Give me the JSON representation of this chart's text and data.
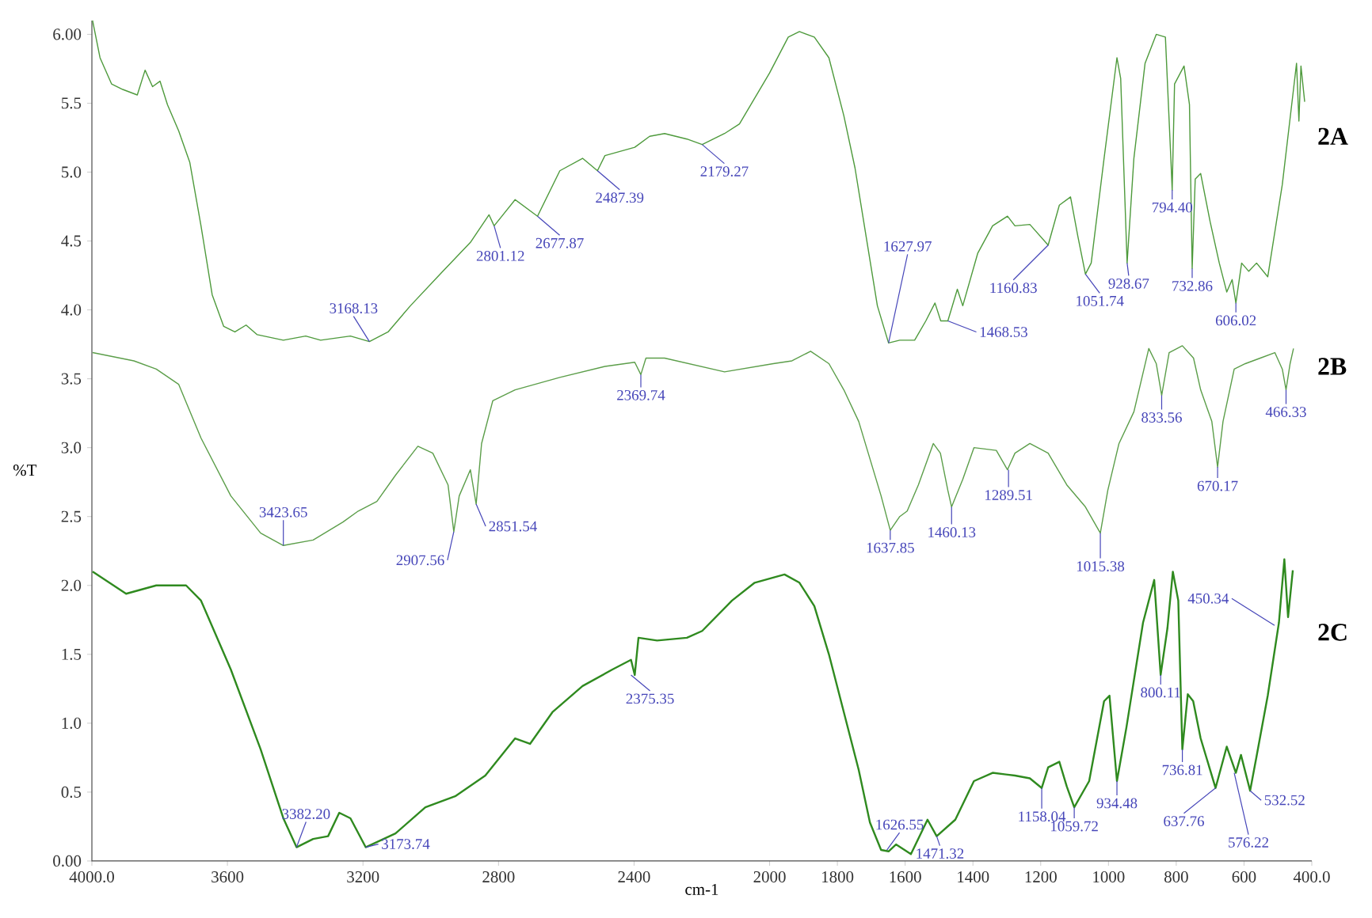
{
  "chart_data": {
    "type": "line",
    "xlabel": "cm-1",
    "ylabel": "%T",
    "xlim": [
      4000,
      400
    ],
    "ylim": [
      0,
      6.1
    ],
    "xticks": [
      {
        "value": 4000,
        "label": "4000.0"
      },
      3600,
      3200,
      2800,
      2400,
      2000,
      1800,
      1600,
      1400,
      1200,
      1000,
      800,
      600,
      {
        "value": 400,
        "label": "400.0"
      }
    ],
    "yticks": [
      {
        "value": 0,
        "label": "0.00"
      },
      {
        "value": 0.5,
        "label": "0.5"
      },
      {
        "value": 1,
        "label": "1.0"
      },
      {
        "value": 1.5,
        "label": "1.5"
      },
      {
        "value": 2,
        "label": "2.0"
      },
      {
        "value": 2.5,
        "label": "2.5"
      },
      {
        "value": 3,
        "label": "3.0"
      },
      {
        "value": 3.5,
        "label": "3.5"
      },
      {
        "value": 4,
        "label": "4.0"
      },
      {
        "value": 4.5,
        "label": "4.5"
      },
      {
        "value": 5,
        "label": "5.0"
      },
      {
        "value": 5.5,
        "label": "5.5"
      },
      {
        "value": 6,
        "label": "6.00"
      }
    ],
    "series": [
      {
        "name": "2A",
        "color": "#4e9a3c",
        "x": [
          3998,
          3976,
          3942,
          3909,
          3866,
          3843,
          3821,
          3799,
          3777,
          3744,
          3711,
          3678,
          3645,
          3611,
          3578,
          3545,
          3512,
          3435,
          3369,
          3325,
          3237,
          3181,
          3126,
          3060,
          2972,
          2883,
          2828,
          2813,
          2751,
          2685,
          2619,
          2552,
          2508,
          2486,
          2398,
          2354,
          2310,
          2244,
          2199,
          2133,
          2089,
          2000,
          1945,
          1912,
          1868,
          1825,
          1781,
          1748,
          1715,
          1682,
          1649,
          1616,
          1572,
          1539,
          1512,
          1495,
          1474,
          1446,
          1430,
          1386,
          1342,
          1298,
          1276,
          1232,
          1178,
          1145,
          1112,
          1090,
          1068,
          1051,
          1013,
          975,
          964,
          945,
          925,
          892,
          859,
          832,
          816,
          812,
          805,
          777,
          761,
          753,
          744,
          728,
          700,
          673,
          651,
          635,
          624,
          607,
          586,
          563,
          530,
          487,
          454,
          445,
          438,
          432,
          421
        ],
        "values": [
          6.1,
          5.83,
          5.64,
          5.6,
          5.56,
          5.74,
          5.62,
          5.66,
          5.49,
          5.3,
          5.07,
          4.61,
          4.11,
          3.88,
          3.84,
          3.89,
          3.82,
          3.78,
          3.81,
          3.78,
          3.81,
          3.77,
          3.84,
          4.03,
          4.26,
          4.49,
          4.69,
          4.61,
          4.8,
          4.68,
          5.01,
          5.1,
          5.01,
          5.12,
          5.18,
          5.26,
          5.28,
          5.24,
          5.2,
          5.28,
          5.35,
          5.72,
          5.98,
          6.02,
          5.98,
          5.83,
          5.41,
          5.03,
          4.53,
          4.03,
          3.76,
          3.78,
          3.78,
          3.92,
          4.05,
          3.92,
          3.92,
          4.15,
          4.03,
          4.41,
          4.61,
          4.68,
          4.61,
          4.62,
          4.47,
          4.76,
          4.82,
          4.53,
          4.26,
          4.34,
          5.1,
          5.83,
          5.68,
          4.34,
          5.1,
          5.79,
          6.0,
          5.98,
          5.1,
          4.87,
          5.64,
          5.77,
          5.49,
          4.3,
          4.95,
          4.99,
          4.64,
          4.34,
          4.13,
          4.22,
          4.05,
          4.34,
          4.28,
          4.34,
          4.24,
          4.91,
          5.6,
          5.79,
          5.37,
          5.77,
          5.51
        ]
      },
      {
        "name": "2B",
        "color": "#5c9e4a",
        "x": [
          3998,
          3876,
          3810,
          3744,
          3678,
          3590,
          3502,
          3435,
          3347,
          3259,
          3214,
          3159,
          3104,
          3038,
          2994,
          2949,
          2932,
          2916,
          2883,
          2866,
          2850,
          2817,
          2751,
          2619,
          2486,
          2398,
          2380,
          2365,
          2310,
          2133,
          1989,
          1934,
          1879,
          1825,
          1781,
          1737,
          1704,
          1671,
          1644,
          1616,
          1594,
          1561,
          1517,
          1496,
          1474,
          1463,
          1430,
          1397,
          1331,
          1298,
          1276,
          1232,
          1178,
          1123,
          1068,
          1024,
          1002,
          969,
          925,
          881,
          859,
          843,
          821,
          782,
          749,
          728,
          695,
          678,
          662,
          629,
          596,
          552,
          509,
          487,
          476,
          464,
          454
        ],
        "values": [
          3.69,
          3.63,
          3.57,
          3.46,
          3.07,
          2.65,
          2.38,
          2.29,
          2.33,
          2.46,
          2.54,
          2.61,
          2.8,
          3.01,
          2.96,
          2.73,
          2.39,
          2.65,
          2.84,
          2.59,
          3.03,
          3.34,
          3.42,
          3.51,
          3.59,
          3.62,
          3.53,
          3.65,
          3.65,
          3.55,
          3.61,
          3.63,
          3.7,
          3.61,
          3.42,
          3.19,
          2.92,
          2.65,
          2.4,
          2.5,
          2.54,
          2.73,
          3.03,
          2.96,
          2.69,
          2.57,
          2.77,
          3.0,
          2.98,
          2.84,
          2.96,
          3.03,
          2.96,
          2.73,
          2.57,
          2.38,
          2.69,
          3.03,
          3.26,
          3.72,
          3.61,
          3.38,
          3.69,
          3.74,
          3.65,
          3.42,
          3.19,
          2.86,
          3.19,
          3.57,
          3.61,
          3.65,
          3.69,
          3.57,
          3.42,
          3.61,
          3.72
        ]
      },
      {
        "name": "2C",
        "color": "#2f8a1f",
        "x": [
          3998,
          3899,
          3810,
          3722,
          3678,
          3590,
          3502,
          3435,
          3396,
          3347,
          3303,
          3270,
          3237,
          3192,
          3104,
          3016,
          2928,
          2839,
          2751,
          2707,
          2641,
          2552,
          2464,
          2409,
          2398,
          2387,
          2332,
          2244,
          2199,
          2111,
          2044,
          1956,
          1912,
          1868,
          1825,
          1781,
          1737,
          1704,
          1671,
          1649,
          1627,
          1583,
          1534,
          1507,
          1452,
          1397,
          1342,
          1276,
          1232,
          1197,
          1178,
          1145,
          1123,
          1101,
          1057,
          1013,
          997,
          975,
          947,
          898,
          865,
          846,
          826,
          810,
          794,
          782,
          766,
          750,
          728,
          684,
          651,
          624,
          609,
          582,
          563,
          530,
          497,
          481,
          470,
          456
        ],
        "values": [
          2.1,
          1.94,
          2.0,
          2.0,
          1.89,
          1.39,
          0.81,
          0.31,
          0.1,
          0.16,
          0.18,
          0.35,
          0.31,
          0.1,
          0.2,
          0.39,
          0.47,
          0.62,
          0.89,
          0.85,
          1.08,
          1.27,
          1.39,
          1.46,
          1.35,
          1.62,
          1.6,
          1.62,
          1.67,
          1.89,
          2.02,
          2.08,
          2.02,
          1.85,
          1.5,
          1.08,
          0.66,
          0.28,
          0.08,
          0.07,
          0.12,
          0.05,
          0.3,
          0.18,
          0.3,
          0.58,
          0.64,
          0.62,
          0.6,
          0.53,
          0.68,
          0.72,
          0.54,
          0.39,
          0.58,
          1.16,
          1.2,
          0.58,
          0.97,
          1.73,
          2.04,
          1.35,
          1.69,
          2.1,
          1.89,
          0.81,
          1.21,
          1.16,
          0.89,
          0.53,
          0.83,
          0.64,
          0.77,
          0.51,
          0.76,
          1.2,
          1.73,
          2.19,
          1.77,
          2.11
        ]
      }
    ],
    "annotations": [
      {
        "text": "3168.13",
        "x": 3181,
        "y": 3.77
      },
      {
        "text": "2801.12",
        "x": 2813,
        "y": 4.61
      },
      {
        "text": "2677.87",
        "x": 2685,
        "y": 4.68
      },
      {
        "text": "2487.39",
        "x": 2508,
        "y": 5.01
      },
      {
        "text": "2179.27",
        "x": 2199,
        "y": 5.2
      },
      {
        "text": "1627.97",
        "x": 1649,
        "y": 3.76
      },
      {
        "text": "1468.53",
        "x": 1474,
        "y": 3.92
      },
      {
        "text": "1160.83",
        "x": 1178,
        "y": 4.47
      },
      {
        "text": "1051.74",
        "x": 1068,
        "y": 4.26
      },
      {
        "text": "928.67",
        "x": 945,
        "y": 4.34
      },
      {
        "text": "794.40",
        "x": 812,
        "y": 4.87
      },
      {
        "text": "732.86",
        "x": 753,
        "y": 4.3
      },
      {
        "text": "606.02",
        "x": 624,
        "y": 4.05
      },
      {
        "text": "3423.65",
        "x": 3435,
        "y": 2.29
      },
      {
        "text": "2907.56",
        "x": 2932,
        "y": 2.39
      },
      {
        "text": "2851.54",
        "x": 2866,
        "y": 2.59
      },
      {
        "text": "2369.74",
        "x": 2380,
        "y": 3.53
      },
      {
        "text": "1637.85",
        "x": 1644,
        "y": 2.4
      },
      {
        "text": "1460.13",
        "x": 1463,
        "y": 2.57
      },
      {
        "text": "1289.51",
        "x": 1295,
        "y": 2.84
      },
      {
        "text": "1015.38",
        "x": 1024,
        "y": 2.38
      },
      {
        "text": "833.56",
        "x": 843,
        "y": 3.38
      },
      {
        "text": "670.17",
        "x": 678,
        "y": 2.86
      },
      {
        "text": "466.33",
        "x": 476,
        "y": 3.42
      },
      {
        "text": "3382.20",
        "x": 3396,
        "y": 0.1
      },
      {
        "text": "3173.74",
        "x": 3192,
        "y": 0.1
      },
      {
        "text": "2375.35",
        "x": 2409,
        "y": 1.35
      },
      {
        "text": "1626.55",
        "x": 1654,
        "y": 0.08
      },
      {
        "text": "1471.32",
        "x": 1507,
        "y": 0.18
      },
      {
        "text": "1158.04",
        "x": 1197,
        "y": 0.53
      },
      {
        "text": "1059.72",
        "x": 1101,
        "y": 0.39
      },
      {
        "text": "934.48",
        "x": 975,
        "y": 0.58
      },
      {
        "text": "800.11",
        "x": 846,
        "y": 1.35
      },
      {
        "text": "736.81",
        "x": 782,
        "y": 0.81
      },
      {
        "text": "637.76",
        "x": 684,
        "y": 0.53
      },
      {
        "text": "576.22",
        "x": 629,
        "y": 0.64
      },
      {
        "text": "532.52",
        "x": 582,
        "y": 0.51
      },
      {
        "text": "450.34",
        "x": 510,
        "y": 1.71
      }
    ]
  }
}
